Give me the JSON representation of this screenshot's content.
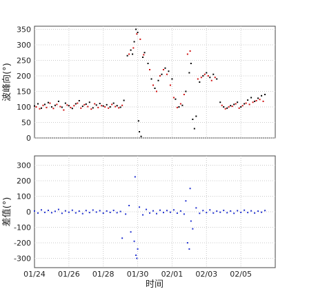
{
  "chart_data": [
    {
      "type": "scatter",
      "panel": "top",
      "ylabel": "波峰向(°)",
      "xlabel": "",
      "ylim": [
        0,
        360
      ],
      "yticks": [
        0,
        50,
        100,
        150,
        200,
        250,
        300,
        350
      ],
      "x_range_days": [
        "01/24",
        "02/07"
      ],
      "grid": true,
      "colors": {
        "series_a": "#000000",
        "series_b": "#d01010"
      },
      "series": [
        {
          "color": "#000000",
          "points": [
            [
              0.0,
              103
            ],
            [
              0.2,
              110
            ],
            [
              0.4,
              96
            ],
            [
              0.6,
              108
            ],
            [
              0.8,
              114
            ],
            [
              1.0,
              100
            ],
            [
              1.2,
              105
            ],
            [
              1.4,
              118
            ],
            [
              1.6,
              99
            ],
            [
              1.8,
              112
            ],
            [
              2.0,
              104
            ],
            [
              2.2,
              95
            ],
            [
              2.4,
              110
            ],
            [
              2.6,
              120
            ],
            [
              2.8,
              102
            ],
            [
              3.0,
              109
            ],
            [
              3.2,
              115
            ],
            [
              3.4,
              97
            ],
            [
              3.6,
              106
            ],
            [
              3.8,
              111
            ],
            [
              4.0,
              103
            ],
            [
              4.2,
              107
            ],
            [
              4.4,
              100
            ],
            [
              4.6,
              112
            ],
            [
              4.8,
              104
            ],
            [
              5.0,
              99
            ],
            [
              5.2,
              121
            ],
            [
              5.4,
              265
            ],
            [
              5.6,
              283
            ],
            [
              5.7,
              270
            ],
            [
              5.8,
              310
            ],
            [
              5.9,
              350
            ],
            [
              6.0,
              340
            ],
            [
              6.05,
              55
            ],
            [
              6.1,
              20
            ],
            [
              6.2,
              5
            ],
            [
              6.3,
              260
            ],
            [
              6.4,
              275
            ],
            [
              6.6,
              240
            ],
            [
              6.8,
              190
            ],
            [
              7.0,
              160
            ],
            [
              7.2,
              185
            ],
            [
              7.4,
              205
            ],
            [
              7.6,
              225
            ],
            [
              7.8,
              215
            ],
            [
              8.0,
              190
            ],
            [
              8.2,
              125
            ],
            [
              8.4,
              100
            ],
            [
              8.6,
              105
            ],
            [
              8.8,
              150
            ],
            [
              9.0,
              210
            ],
            [
              9.1,
              240
            ],
            [
              9.2,
              60
            ],
            [
              9.3,
              30
            ],
            [
              9.4,
              70
            ],
            [
              9.6,
              180
            ],
            [
              9.8,
              200
            ],
            [
              10.0,
              210
            ],
            [
              10.2,
              195
            ],
            [
              10.4,
              205
            ],
            [
              10.6,
              190
            ],
            [
              10.8,
              115
            ],
            [
              11.0,
              100
            ],
            [
              11.2,
              96
            ],
            [
              11.4,
              104
            ],
            [
              11.6,
              108
            ],
            [
              11.8,
              115
            ],
            [
              12.0,
              100
            ],
            [
              12.2,
              110
            ],
            [
              12.4,
              122
            ],
            [
              12.6,
              130
            ],
            [
              12.8,
              118
            ],
            [
              13.0,
              128
            ],
            [
              13.2,
              136
            ],
            [
              13.4,
              140
            ]
          ]
        },
        {
          "color": "#d01010",
          "points": [
            [
              0.1,
              100
            ],
            [
              0.3,
              94
            ],
            [
              0.5,
              105
            ],
            [
              0.7,
              98
            ],
            [
              0.9,
              112
            ],
            [
              1.1,
              95
            ],
            [
              1.3,
              108
            ],
            [
              1.5,
              101
            ],
            [
              1.7,
              90
            ],
            [
              1.9,
              106
            ],
            [
              2.1,
              98
            ],
            [
              2.3,
              104
            ],
            [
              2.5,
              112
            ],
            [
              2.7,
              96
            ],
            [
              2.9,
              107
            ],
            [
              3.1,
              101
            ],
            [
              3.3,
              93
            ],
            [
              3.5,
              110
            ],
            [
              3.7,
              98
            ],
            [
              3.9,
              104
            ],
            [
              4.1,
              100
            ],
            [
              4.3,
              96
            ],
            [
              4.5,
              108
            ],
            [
              4.7,
              101
            ],
            [
              4.9,
              97
            ],
            [
              5.1,
              105
            ],
            [
              5.5,
              270
            ],
            [
              5.75,
              290
            ],
            [
              5.95,
              335
            ],
            [
              6.15,
              318
            ],
            [
              6.35,
              268
            ],
            [
              6.7,
              220
            ],
            [
              6.9,
              170
            ],
            [
              7.1,
              150
            ],
            [
              7.3,
              200
            ],
            [
              7.5,
              220
            ],
            [
              7.7,
              205
            ],
            [
              7.9,
              170
            ],
            [
              8.1,
              130
            ],
            [
              8.3,
              98
            ],
            [
              8.5,
              110
            ],
            [
              8.7,
              140
            ],
            [
              8.9,
              270
            ],
            [
              9.05,
              280
            ],
            [
              9.5,
              190
            ],
            [
              9.7,
              195
            ],
            [
              9.9,
              205
            ],
            [
              10.1,
              200
            ],
            [
              10.3,
              185
            ],
            [
              10.5,
              195
            ],
            [
              10.9,
              105
            ],
            [
              11.1,
              94
            ],
            [
              11.3,
              100
            ],
            [
              11.5,
              102
            ],
            [
              11.7,
              110
            ],
            [
              11.9,
              96
            ],
            [
              12.1,
              104
            ],
            [
              12.3,
              112
            ],
            [
              12.5,
              108
            ],
            [
              12.7,
              115
            ],
            [
              12.9,
              120
            ],
            [
              13.1,
              124
            ],
            [
              13.3,
              118
            ]
          ]
        }
      ]
    },
    {
      "type": "scatter",
      "panel": "bottom",
      "ylabel": "差值(°)",
      "xlabel": "时间",
      "ylim": [
        -360,
        360
      ],
      "yticks": [
        -300,
        -200,
        -100,
        0,
        100,
        200,
        300
      ],
      "x_range_days": [
        "01/24",
        "02/07"
      ],
      "xticks": [
        "01/24",
        "01/26",
        "01/28",
        "01/30",
        "02/01",
        "02/03",
        "02/05"
      ],
      "grid": true,
      "series": [
        {
          "color": "#1f2fd0",
          "points": [
            [
              0.0,
              5
            ],
            [
              0.2,
              -8
            ],
            [
              0.4,
              12
            ],
            [
              0.6,
              -4
            ],
            [
              0.8,
              9
            ],
            [
              1.0,
              -6
            ],
            [
              1.2,
              3
            ],
            [
              1.4,
              15
            ],
            [
              1.6,
              -10
            ],
            [
              1.8,
              6
            ],
            [
              2.0,
              -3
            ],
            [
              2.2,
              10
            ],
            [
              2.4,
              -7
            ],
            [
              2.6,
              4
            ],
            [
              2.8,
              -12
            ],
            [
              3.0,
              8
            ],
            [
              3.2,
              -5
            ],
            [
              3.4,
              11
            ],
            [
              3.6,
              -2
            ],
            [
              3.8,
              7
            ],
            [
              4.0,
              -9
            ],
            [
              4.2,
              5
            ],
            [
              4.4,
              -4
            ],
            [
              4.6,
              9
            ],
            [
              4.8,
              -6
            ],
            [
              5.0,
              2
            ],
            [
              5.1,
              -170
            ],
            [
              5.3,
              -15
            ],
            [
              5.5,
              40
            ],
            [
              5.6,
              -130
            ],
            [
              5.8,
              -190
            ],
            [
              5.85,
              225
            ],
            [
              5.9,
              -280
            ],
            [
              5.95,
              -300
            ],
            [
              6.0,
              -240
            ],
            [
              6.1,
              30
            ],
            [
              6.3,
              -20
            ],
            [
              6.5,
              15
            ],
            [
              6.7,
              -8
            ],
            [
              6.9,
              6
            ],
            [
              7.1,
              -12
            ],
            [
              7.3,
              10
            ],
            [
              7.5,
              -5
            ],
            [
              7.7,
              8
            ],
            [
              7.9,
              -3
            ],
            [
              8.1,
              12
            ],
            [
              8.3,
              -9
            ],
            [
              8.5,
              5
            ],
            [
              8.7,
              -15
            ],
            [
              8.8,
              70
            ],
            [
              8.9,
              -200
            ],
            [
              9.0,
              -240
            ],
            [
              9.05,
              150
            ],
            [
              9.1,
              -60
            ],
            [
              9.2,
              -110
            ],
            [
              9.4,
              25
            ],
            [
              9.6,
              -10
            ],
            [
              9.8,
              8
            ],
            [
              10.0,
              -5
            ],
            [
              10.2,
              12
            ],
            [
              10.4,
              -8
            ],
            [
              10.6,
              4
            ],
            [
              10.8,
              -3
            ],
            [
              11.0,
              9
            ],
            [
              11.2,
              -6
            ],
            [
              11.4,
              5
            ],
            [
              11.6,
              -10
            ],
            [
              11.8,
              7
            ],
            [
              12.0,
              -4
            ],
            [
              12.2,
              10
            ],
            [
              12.4,
              -5
            ],
            [
              12.6,
              6
            ],
            [
              12.8,
              -8
            ],
            [
              13.0,
              4
            ],
            [
              13.2,
              -3
            ],
            [
              13.4,
              8
            ]
          ]
        }
      ]
    }
  ]
}
